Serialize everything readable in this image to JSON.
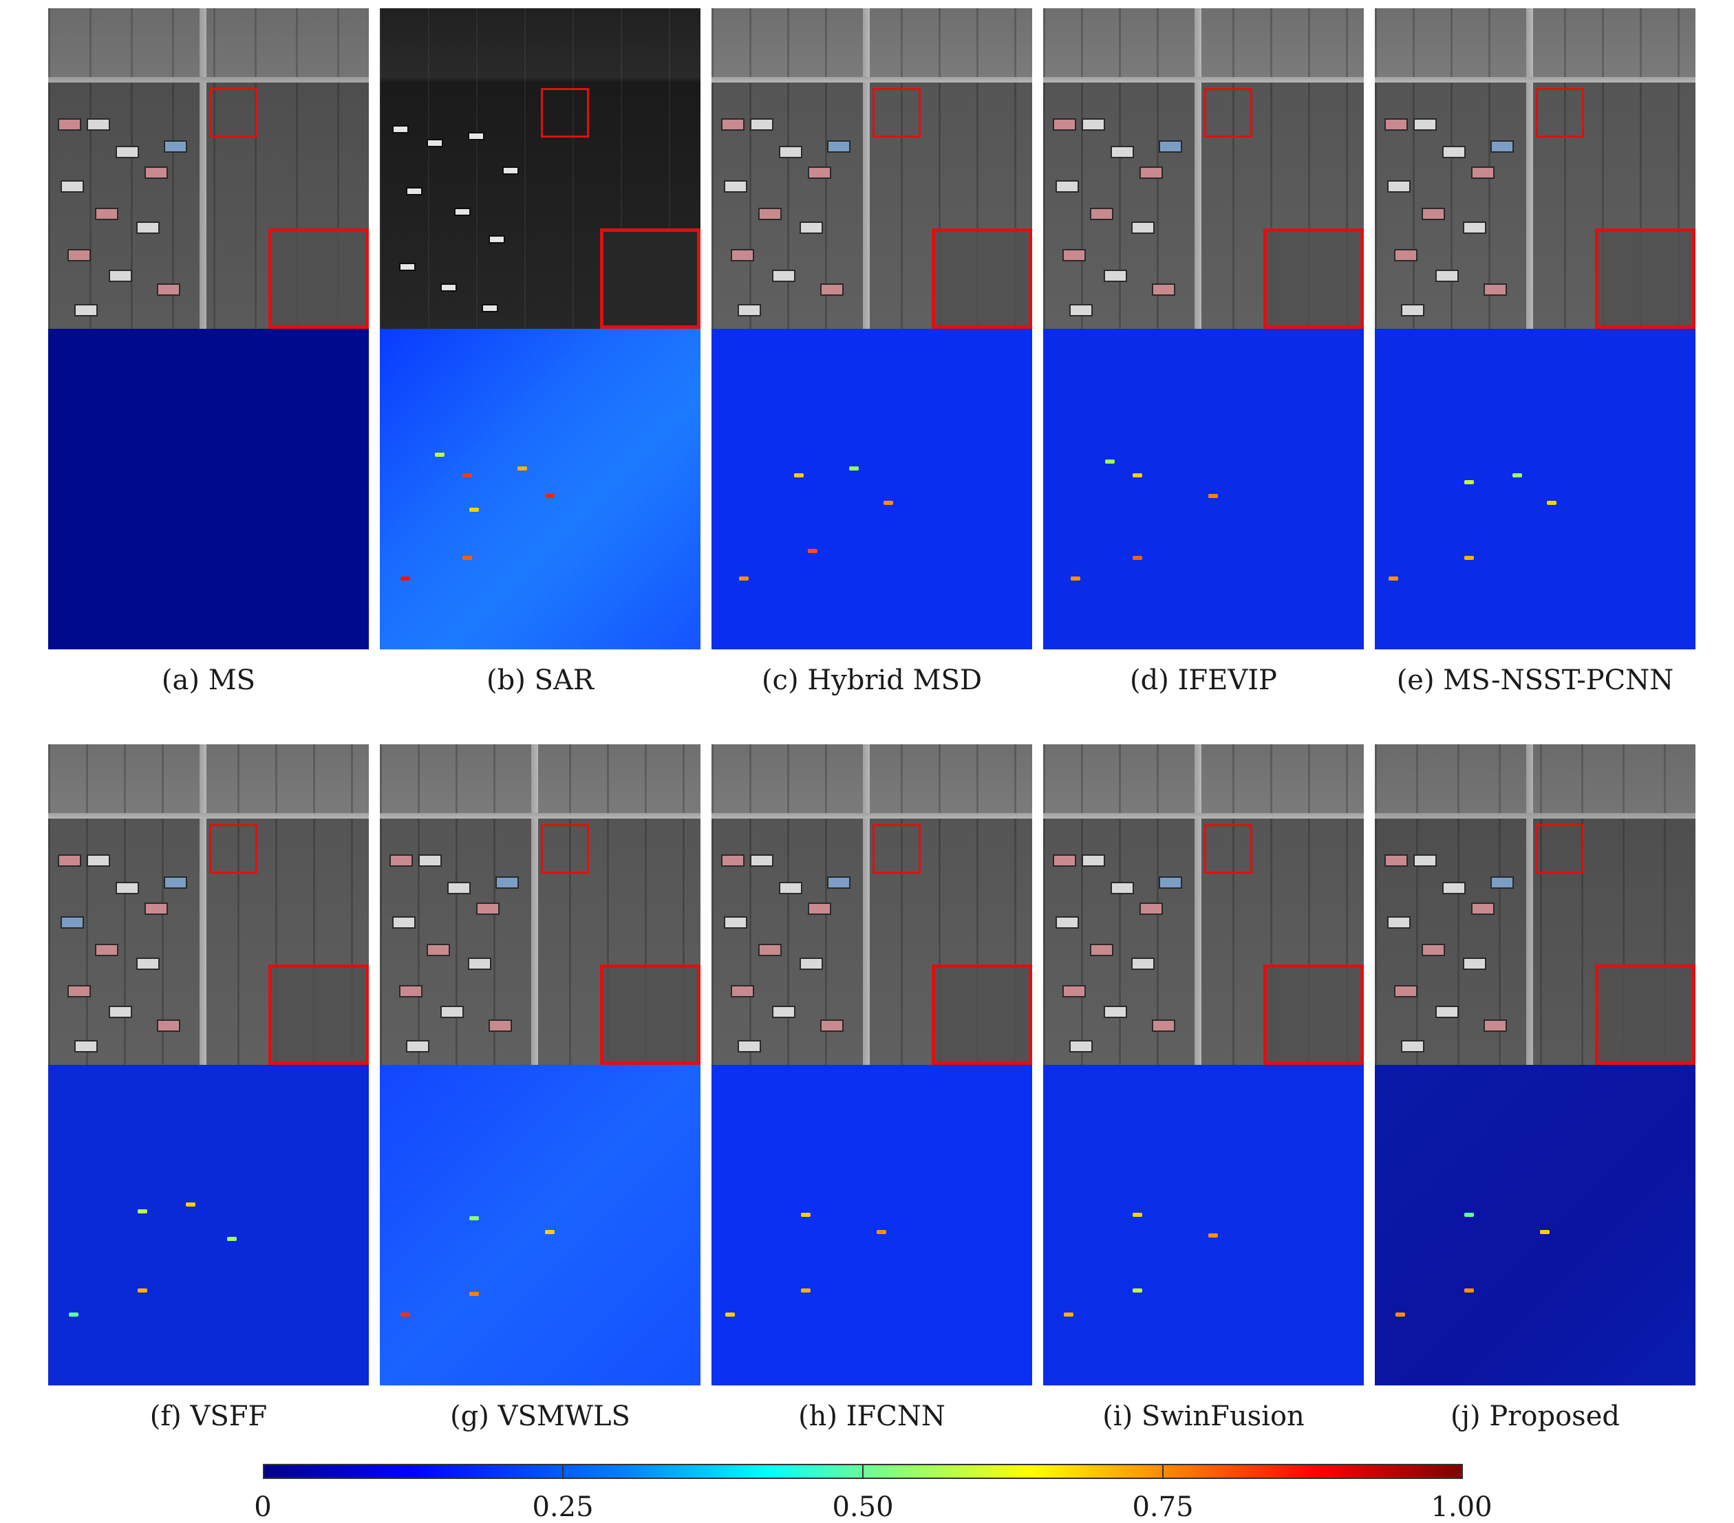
{
  "panels": [
    {
      "caption": "(a) MS"
    },
    {
      "caption": "(b) SAR"
    },
    {
      "caption": "(c) Hybrid MSD"
    },
    {
      "caption": "(d) IFEVIP"
    },
    {
      "caption": "(e) MS-NSST-PCNN"
    },
    {
      "caption": "(f) VSFF"
    },
    {
      "caption": "(g) VSMWLS"
    },
    {
      "caption": "(h) IFCNN"
    },
    {
      "caption": "(i) SwinFusion"
    },
    {
      "caption": "(j) Proposed"
    }
  ],
  "colorbar": {
    "ticks": [
      "0",
      "0.25",
      "0.50",
      "0.75",
      "1.00"
    ],
    "colormap": [
      "#00008f",
      "#0000ff",
      "#00ffff",
      "#ffff00",
      "#ff0000",
      "#800000"
    ]
  }
}
